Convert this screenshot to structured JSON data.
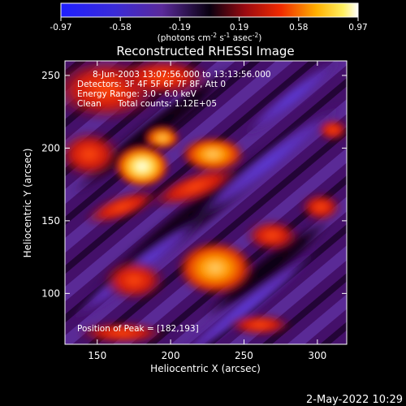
{
  "colorbar": {
    "ticks": [
      "-0.97",
      "-0.58",
      "-0.19",
      "0.19",
      "0.58",
      "0.97"
    ],
    "units_prefix": "(photons cm",
    "units_sup1": "-2",
    "units_mid": " s",
    "units_sup2": "-1",
    "units_mid2": " asec",
    "units_sup3": "-2",
    "units_suffix": ")"
  },
  "header": {
    "title": "Reconstructed RHESSI Image"
  },
  "overlay": {
    "line1": "8-Jun-2003 13:07:56.000 to 13:13:56.000",
    "line2": "Detectors: 3F 4F 5F 6F 7F 8F, Att 0",
    "line3": "Energy Range: 3.0 - 6.0 keV",
    "line4_a": "Clean",
    "line4_b": "Total counts: 1.12E+05",
    "peak_text": "Position of Peak = [182,193]"
  },
  "footer": {
    "date_text": "2-May-2022 10:29"
  },
  "chart_data": {
    "type": "heatmap",
    "title": "Reconstructed RHESSI Image",
    "xlabel": "Heliocentric X (arcsec)",
    "ylabel": "Heliocentric Y (arcsec)",
    "xlim": [
      128,
      320
    ],
    "ylim": [
      65,
      260
    ],
    "x_ticks": [
      150,
      200,
      250,
      300
    ],
    "y_ticks": [
      100,
      150,
      200,
      250
    ],
    "color_range": [
      -0.97,
      0.97
    ],
    "peak": [
      182,
      193
    ]
  }
}
